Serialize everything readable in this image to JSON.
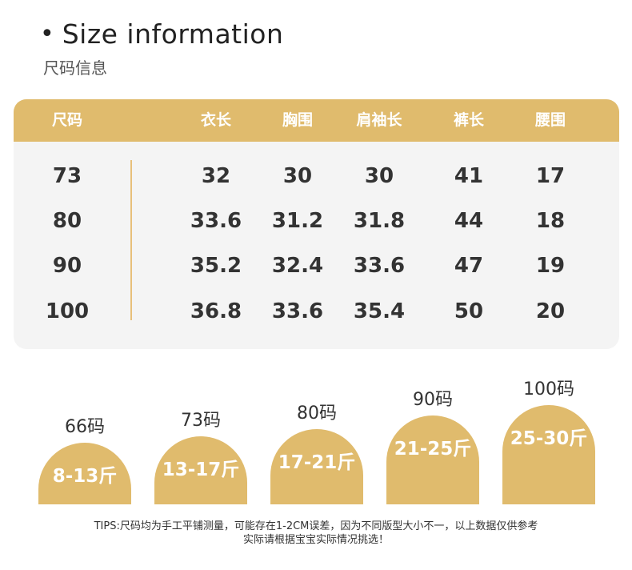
{
  "header": {
    "bullet": "•",
    "title": "Size information",
    "subtitle": "尺码信息"
  },
  "table": {
    "columns": [
      "尺码",
      "衣长",
      "胸围",
      "肩袖长",
      "裤长",
      "腰围"
    ],
    "rows": [
      [
        "73",
        "32",
        "30",
        "30",
        "41",
        "17"
      ],
      [
        "80",
        "33.6",
        "31.2",
        "31.8",
        "44",
        "18"
      ],
      [
        "90",
        "35.2",
        "32.4",
        "33.6",
        "47",
        "19"
      ],
      [
        "100",
        "36.8",
        "33.6",
        "35.4",
        "50",
        "20"
      ]
    ]
  },
  "weight_guide": [
    {
      "size": "66码",
      "weight": "8-13斤"
    },
    {
      "size": "73码",
      "weight": "13-17斤"
    },
    {
      "size": "80码",
      "weight": "17-21斤"
    },
    {
      "size": "90码",
      "weight": "21-25斤"
    },
    {
      "size": "100码",
      "weight": "25-30斤"
    }
  ],
  "tips": {
    "line1": "TIPS:尺码均为手工平铺测量，可能存在1-2CM误差，因为不同版型大小不一，以上数据仅供参考",
    "line2": "实际请根据宝宝实际情况挑选！"
  },
  "colors": {
    "accent": "#e0bb6d",
    "table_bg": "#f4f4f4",
    "text": "#333333"
  }
}
